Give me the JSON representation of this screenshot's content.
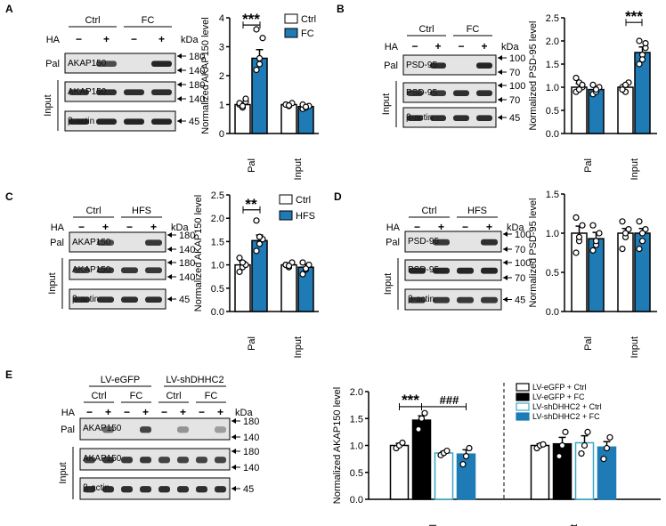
{
  "colors": {
    "blue": "#1f7bb5",
    "black": "#000000",
    "light_blue_outline": "#39a8c7",
    "band": "#1a1a1a"
  },
  "panels": [
    {
      "letter": "A",
      "groups": [
        {
          "label": "Ctrl"
        },
        {
          "label": "FC"
        }
      ],
      "ha_label": "HA",
      "ha_marks": [
        "−",
        "+",
        "−",
        "+"
      ],
      "kda": "kDa",
      "rows": [
        {
          "side": "Pal",
          "label": "AKAP150",
          "markers": [
            "180",
            "140"
          ]
        },
        {
          "side": "",
          "label": "AKAP150",
          "markers": [
            "180",
            "140"
          ]
        },
        {
          "side": "",
          "label": "β-actin",
          "markers": [
            "45"
          ]
        }
      ],
      "input_label": "Input"
    },
    {
      "letter": "B",
      "groups": [
        {
          "label": "Ctrl"
        },
        {
          "label": "FC"
        }
      ],
      "ha_label": "HA",
      "ha_marks": [
        "−",
        "+",
        "−",
        "+"
      ],
      "kda": "kDa",
      "rows": [
        {
          "side": "Pal",
          "label": "PSD-95",
          "markers": [
            "100",
            "70"
          ]
        },
        {
          "side": "",
          "label": "PSD-95",
          "markers": [
            "100",
            "70"
          ]
        },
        {
          "side": "",
          "label": "β-actin",
          "markers": [
            "45"
          ]
        }
      ],
      "input_label": "Input"
    },
    {
      "letter": "C",
      "groups": [
        {
          "label": "Ctrl"
        },
        {
          "label": "HFS"
        }
      ],
      "ha_label": "HA",
      "ha_marks": [
        "−",
        "+",
        "−",
        "+"
      ],
      "kda": "kDa",
      "rows": [
        {
          "side": "Pal",
          "label": "AKAP150",
          "markers": [
            "180",
            "140"
          ]
        },
        {
          "side": "",
          "label": "AKAP150",
          "markers": [
            "180",
            "140"
          ]
        },
        {
          "side": "",
          "label": "β-actin",
          "markers": [
            "45"
          ]
        }
      ],
      "input_label": "Input"
    },
    {
      "letter": "D",
      "groups": [
        {
          "label": "Ctrl"
        },
        {
          "label": "HFS"
        }
      ],
      "ha_label": "HA",
      "ha_marks": [
        "−",
        "+",
        "−",
        "+"
      ],
      "kda": "kDa",
      "rows": [
        {
          "side": "Pal",
          "label": "PSD-95",
          "markers": [
            "100",
            "70"
          ]
        },
        {
          "side": "",
          "label": "PSD-95",
          "markers": [
            "100",
            "70"
          ]
        },
        {
          "side": "",
          "label": "β-actin",
          "markers": [
            "45"
          ]
        }
      ],
      "input_label": "Input"
    },
    {
      "letter": "E",
      "top_groups": [
        {
          "label": "LV-eGFP"
        },
        {
          "label": "LV-shDHHC2"
        }
      ],
      "groups": [
        {
          "label": "Ctrl"
        },
        {
          "label": "FC"
        },
        {
          "label": "Ctrl"
        },
        {
          "label": "FC"
        }
      ],
      "ha_label": "HA",
      "ha_marks": [
        "−",
        "+",
        "−",
        "+",
        "−",
        "+",
        "−",
        "+"
      ],
      "kda": "kDa",
      "rows": [
        {
          "side": "Pal",
          "label": "AKAP150",
          "markers": [
            "180",
            "140"
          ]
        },
        {
          "side": "",
          "label": "AKAP150",
          "markers": [
            "180",
            "140"
          ]
        },
        {
          "side": "",
          "label": "β-actin",
          "markers": [
            "45"
          ]
        }
      ],
      "input_label": "Input"
    }
  ],
  "chart_data": [
    {
      "panel": "A",
      "type": "bar",
      "ylabel": "Normalized AKAP150 level",
      "ylim": [
        0,
        4
      ],
      "yticks": [
        "0",
        "1",
        "2",
        "3",
        "4"
      ],
      "categories": [
        "Pal",
        "Input"
      ],
      "series": [
        {
          "name": "Ctrl",
          "values": [
            1.0,
            1.0
          ],
          "errors": [
            0.07,
            0.05
          ]
        },
        {
          "name": "FC",
          "values": [
            2.6,
            0.93
          ],
          "errors": [
            0.3,
            0.04
          ]
        }
      ],
      "points": [
        [
          [
            1.0,
            0.9,
            1.1,
            1.05,
            0.95,
            1.2
          ],
          [
            1.0,
            0.95,
            1.05,
            1.0,
            0.97
          ]
        ],
        [
          [
            2.2,
            2.6,
            3.3,
            3.6,
            2.4
          ],
          [
            0.85,
            0.9,
            0.95,
            1.0,
            0.92
          ]
        ]
      ],
      "sig": [
        {
          "text": "***",
          "category": 0
        }
      ]
    },
    {
      "panel": "B",
      "type": "bar",
      "ylabel": "Normalized PSD-95 level",
      "ylim": [
        0,
        2.5
      ],
      "yticks": [
        "0.0",
        "0.5",
        "1.0",
        "1.5",
        "2.0",
        "2.5"
      ],
      "categories": [
        "Pal",
        "Input"
      ],
      "series": [
        {
          "name": "",
          "values": [
            1.0,
            1.0
          ],
          "errors": [
            0.08,
            0.06
          ]
        },
        {
          "name": "",
          "values": [
            0.95,
            1.75
          ],
          "errors": [
            0.06,
            0.12
          ]
        }
      ],
      "points": [
        [
          [
            1.2,
            1.1,
            1.0,
            0.9,
            0.95,
            1.05
          ],
          [
            1.0,
            0.9,
            1.1,
            0.95,
            1.05
          ]
        ],
        [
          [
            0.85,
            0.9,
            1.0,
            1.05,
            0.95
          ],
          [
            1.5,
            1.7,
            1.85,
            2.0,
            1.6,
            1.95
          ]
        ]
      ],
      "sig": [
        {
          "text": "***",
          "category": 1
        }
      ]
    },
    {
      "panel": "C",
      "type": "bar",
      "ylabel": "Normalized AKAP150 level",
      "ylim": [
        0,
        2.5
      ],
      "yticks": [
        "0.0",
        "0.5",
        "1.0",
        "1.5",
        "2.0",
        "2.5"
      ],
      "categories": [
        "Pal",
        "Input"
      ],
      "series": [
        {
          "name": "Ctrl",
          "values": [
            1.0,
            1.0
          ],
          "errors": [
            0.07,
            0.04
          ]
        },
        {
          "name": "HFS",
          "values": [
            1.52,
            0.95
          ],
          "errors": [
            0.12,
            0.06
          ]
        }
      ],
      "points": [
        [
          [
            0.85,
            0.95,
            1.0,
            1.15,
            1.05
          ],
          [
            1.0,
            0.95,
            1.05,
            1.0,
            0.98
          ]
        ],
        [
          [
            1.3,
            1.45,
            1.55,
            1.95,
            1.6
          ],
          [
            0.8,
            0.9,
            1.0,
            1.05,
            0.92
          ]
        ]
      ],
      "sig": [
        {
          "text": "**",
          "category": 0
        }
      ]
    },
    {
      "panel": "D",
      "type": "bar",
      "ylabel": "Normalized PSD-95 level",
      "ylim": [
        0,
        1.5
      ],
      "yticks": [
        "0.0",
        "0.5",
        "1.0",
        "1.5"
      ],
      "categories": [
        "Pal",
        "Input"
      ],
      "series": [
        {
          "name": "",
          "values": [
            1.0,
            1.0
          ],
          "errors": [
            0.09,
            0.06
          ]
        },
        {
          "name": "",
          "values": [
            0.93,
            1.0
          ],
          "errors": [
            0.08,
            0.06
          ]
        }
      ],
      "points": [
        [
          [
            0.75,
            0.9,
            1.1,
            1.2,
            0.95
          ],
          [
            0.8,
            0.95,
            1.05,
            1.15,
            1.0
          ]
        ],
        [
          [
            0.78,
            0.85,
            1.0,
            1.1,
            0.9
          ],
          [
            0.8,
            0.9,
            1.05,
            1.15,
            1.0
          ]
        ]
      ],
      "sig": []
    },
    {
      "panel": "E",
      "type": "bar",
      "ylabel": "Normalized AKAP150  level",
      "ylim": [
        0,
        2.0
      ],
      "yticks": [
        "0.0",
        "0.5",
        "1.0",
        "1.5",
        "2.0"
      ],
      "categories": [
        "Pal",
        "Input"
      ],
      "series": [
        {
          "name": "LV-eGFP + Ctrl",
          "values": [
            1.0,
            1.0
          ],
          "errors": [
            0.04,
            0.03
          ]
        },
        {
          "name": "LV-eGFP + FC",
          "values": [
            1.47,
            1.03
          ],
          "errors": [
            0.08,
            0.12
          ]
        },
        {
          "name": "LV-shDHHC2 + Ctrl",
          "values": [
            0.86,
            1.05
          ],
          "errors": [
            0.03,
            0.13
          ]
        },
        {
          "name": "LV-shDHHC2 + FC",
          "values": [
            0.84,
            0.97
          ],
          "errors": [
            0.08,
            0.1
          ]
        }
      ],
      "points": [
        [
          [
            0.95,
            1.0,
            1.05
          ],
          [
            0.95,
            1.0,
            1.02
          ]
        ],
        [
          [
            1.3,
            1.5,
            1.6
          ],
          [
            0.8,
            1.0,
            1.25
          ]
        ],
        [
          [
            0.82,
            0.86,
            0.9
          ],
          [
            0.85,
            1.0,
            1.25
          ]
        ],
        [
          [
            0.65,
            0.8,
            0.95
          ],
          [
            0.75,
            0.95,
            1.15
          ]
        ]
      ],
      "sig": [
        {
          "text": "***",
          "from": 0,
          "to": 1
        },
        {
          "text": "###",
          "from": 1,
          "to": 3
        }
      ]
    }
  ]
}
